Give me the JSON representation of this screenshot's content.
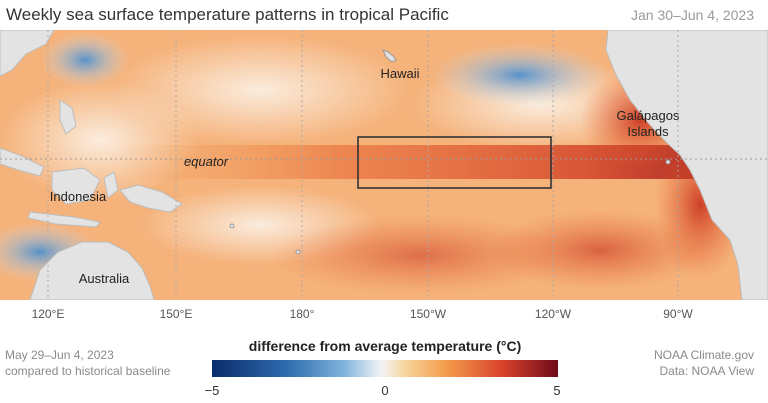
{
  "title": "Weekly sea surface temperature patterns in tropical Pacific",
  "date_range": "Jan 30–Jun 4, 2023",
  "map_labels": {
    "hawaii": "Hawaii",
    "galapagos_line1": "Galápagos",
    "galapagos_line2": "Islands",
    "equator": "equator",
    "indonesia": "Indonesia",
    "australia": "Australia"
  },
  "longitudes": [
    "120°E",
    "150°E",
    "180°",
    "150°W",
    "120°W",
    "90°W"
  ],
  "caption": {
    "dates": "May 29–Jun 4, 2023",
    "baseline": "compared to historical baseline"
  },
  "credit": {
    "org": "NOAA Climate.gov",
    "data": "Data: NOAA View"
  },
  "legend": {
    "title": "difference from average temperature (°C)",
    "min": "−5",
    "mid": "0",
    "max": "5",
    "colors": [
      "#0a2b6b",
      "#2f6db0",
      "#f2f4f6",
      "#f39a4a",
      "#d8432c",
      "#6d0a1b"
    ]
  }
}
